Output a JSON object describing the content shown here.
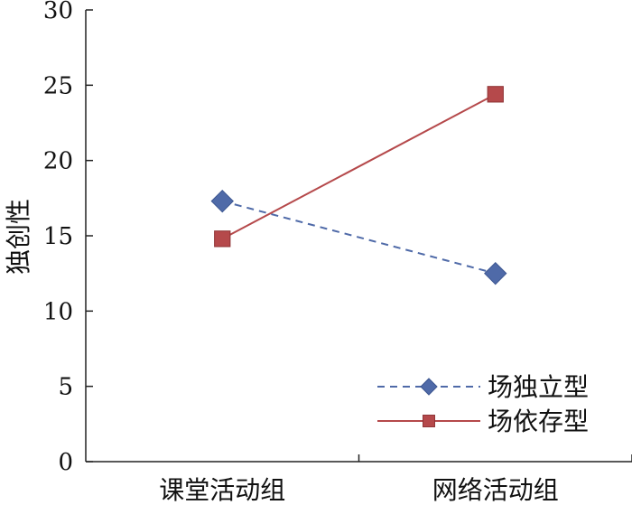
{
  "chart_data": {
    "type": "line",
    "ylabel": "独创性",
    "xlabel": "",
    "categories": [
      "课堂活动组",
      "网络活动组"
    ],
    "ylim": [
      0,
      30
    ],
    "yticks": [
      0,
      5,
      10,
      15,
      20,
      25,
      30
    ],
    "grid": false,
    "legend_position": "bottom-right",
    "series": [
      {
        "name": "场独立型",
        "values": [
          17.3,
          12.5
        ],
        "color": "#4F6AA8",
        "marker": "diamond",
        "dash": true
      },
      {
        "name": "场依存型",
        "values": [
          14.8,
          24.4
        ],
        "color": "#B5494B",
        "marker": "square",
        "dash": false
      }
    ]
  }
}
